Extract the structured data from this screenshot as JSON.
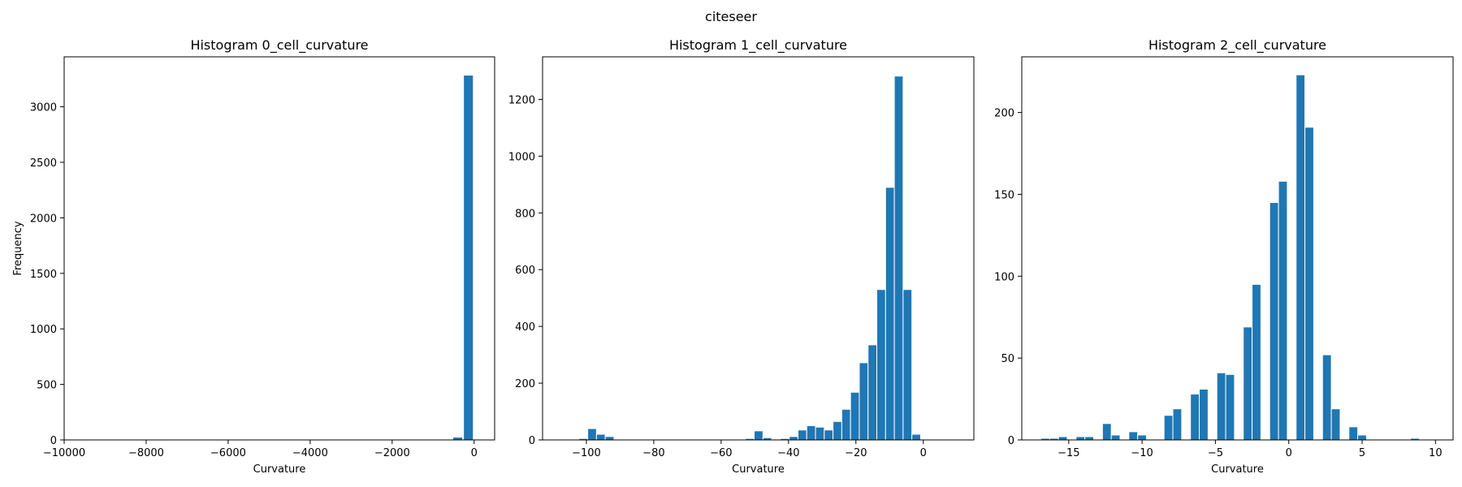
{
  "figure": {
    "suptitle": "citeseer"
  },
  "chart_data": [
    {
      "type": "bar",
      "title": "Histogram 0_cell_curvature",
      "xlabel": "Curvature",
      "ylabel": "Frequency",
      "xlim": [
        -10000,
        500
      ],
      "ylim": [
        0,
        3450
      ],
      "xticks": [
        -10000,
        -8000,
        -6000,
        -4000,
        -2000,
        0
      ],
      "xtick_labels": [
        "−10000",
        "−8000",
        "−6000",
        "−4000",
        "−2000",
        "0"
      ],
      "yticks": [
        0,
        500,
        1000,
        1500,
        2000,
        2500,
        3000
      ],
      "ytick_labels": [
        "0",
        "500",
        "1000",
        "1500",
        "2000",
        "2500",
        "3000"
      ],
      "bar_color": "#1f77b4",
      "bars": [
        {
          "x0": -9800,
          "x1": -9560,
          "value": 1
        },
        {
          "x0": -520,
          "x1": -280,
          "value": 25
        },
        {
          "x0": -260,
          "x1": -20,
          "value": 3285
        }
      ]
    },
    {
      "type": "bar",
      "title": "Histogram 1_cell_curvature",
      "xlabel": "Curvature",
      "ylabel": "",
      "xlim": [
        -113,
        15
      ],
      "ylim": [
        0,
        1350
      ],
      "xticks": [
        -100,
        -80,
        -60,
        -40,
        -20,
        0
      ],
      "xtick_labels": [
        "−100",
        "−80",
        "−60",
        "−40",
        "−20",
        "0"
      ],
      "yticks": [
        0,
        200,
        400,
        600,
        800,
        1000,
        1200
      ],
      "ytick_labels": [
        "0",
        "200",
        "400",
        "600",
        "800",
        "1000",
        "1200"
      ],
      "bar_color": "#1f77b4",
      "bars": [
        {
          "x0": -104.8,
          "x1": -102.2,
          "value": 2
        },
        {
          "x0": -102.2,
          "x1": -99.6,
          "value": 5
        },
        {
          "x0": -99.6,
          "x1": -97.0,
          "value": 40
        },
        {
          "x0": -97.0,
          "x1": -94.4,
          "value": 20
        },
        {
          "x0": -94.4,
          "x1": -91.8,
          "value": 12
        },
        {
          "x0": -52.8,
          "x1": -50.2,
          "value": 5
        },
        {
          "x0": -50.2,
          "x1": -47.6,
          "value": 32
        },
        {
          "x0": -47.6,
          "x1": -45.0,
          "value": 8
        },
        {
          "x0": -45.0,
          "x1": -42.4,
          "value": 3
        },
        {
          "x0": -42.4,
          "x1": -39.8,
          "value": 5
        },
        {
          "x0": -39.8,
          "x1": -37.2,
          "value": 12
        },
        {
          "x0": -37.2,
          "x1": -34.6,
          "value": 35
        },
        {
          "x0": -34.6,
          "x1": -32.0,
          "value": 50
        },
        {
          "x0": -32.0,
          "x1": -29.4,
          "value": 45
        },
        {
          "x0": -29.4,
          "x1": -26.8,
          "value": 35
        },
        {
          "x0": -26.8,
          "x1": -24.2,
          "value": 65
        },
        {
          "x0": -24.2,
          "x1": -21.6,
          "value": 108
        },
        {
          "x0": -21.6,
          "x1": -19.0,
          "value": 168
        },
        {
          "x0": -19.0,
          "x1": -16.4,
          "value": 272
        },
        {
          "x0": -16.4,
          "x1": -13.8,
          "value": 335
        },
        {
          "x0": -13.8,
          "x1": -11.2,
          "value": 530
        },
        {
          "x0": -11.2,
          "x1": -8.6,
          "value": 890
        },
        {
          "x0": -8.6,
          "x1": -6.0,
          "value": 1282
        },
        {
          "x0": -6.0,
          "x1": -3.4,
          "value": 530
        },
        {
          "x0": -3.4,
          "x1": -0.8,
          "value": 20
        }
      ]
    },
    {
      "type": "bar",
      "title": "Histogram 2_cell_curvature",
      "xlabel": "Curvature",
      "ylabel": "",
      "xlim": [
        -18.2,
        11.2
      ],
      "ylim": [
        0,
        234
      ],
      "xticks": [
        -15,
        -10,
        -5,
        0,
        5,
        10
      ],
      "xtick_labels": [
        "−15",
        "−10",
        "−5",
        "0",
        "5",
        "10"
      ],
      "yticks": [
        0,
        50,
        100,
        150,
        200
      ],
      "ytick_labels": [
        "0",
        "50",
        "100",
        "150",
        "200"
      ],
      "bar_color": "#1f77b4",
      "bars": [
        {
          "x0": -16.9,
          "x1": -16.3,
          "value": 1
        },
        {
          "x0": -16.3,
          "x1": -15.7,
          "value": 1
        },
        {
          "x0": -15.7,
          "x1": -15.1,
          "value": 2
        },
        {
          "x0": -14.5,
          "x1": -13.9,
          "value": 2
        },
        {
          "x0": -13.9,
          "x1": -13.3,
          "value": 2
        },
        {
          "x0": -12.7,
          "x1": -12.1,
          "value": 10
        },
        {
          "x0": -12.1,
          "x1": -11.5,
          "value": 3
        },
        {
          "x0": -10.9,
          "x1": -10.3,
          "value": 5
        },
        {
          "x0": -10.3,
          "x1": -9.7,
          "value": 3
        },
        {
          "x0": -9.1,
          "x1": -8.5,
          "value": 0
        },
        {
          "x0": -8.5,
          "x1": -7.9,
          "value": 15
        },
        {
          "x0": -7.9,
          "x1": -7.3,
          "value": 19
        },
        {
          "x0": -6.7,
          "x1": -6.1,
          "value": 28
        },
        {
          "x0": -6.1,
          "x1": -5.5,
          "value": 31
        },
        {
          "x0": -4.9,
          "x1": -4.3,
          "value": 41
        },
        {
          "x0": -4.3,
          "x1": -3.7,
          "value": 40
        },
        {
          "x0": -3.1,
          "x1": -2.5,
          "value": 69
        },
        {
          "x0": -2.5,
          "x1": -1.9,
          "value": 95
        },
        {
          "x0": -1.3,
          "x1": -0.7,
          "value": 145
        },
        {
          "x0": -0.7,
          "x1": -0.1,
          "value": 158
        },
        {
          "x0": 0.5,
          "x1": 1.1,
          "value": 223
        },
        {
          "x0": 1.1,
          "x1": 1.7,
          "value": 191
        },
        {
          "x0": 2.3,
          "x1": 2.9,
          "value": 52
        },
        {
          "x0": 2.9,
          "x1": 3.5,
          "value": 19
        },
        {
          "x0": 4.1,
          "x1": 4.7,
          "value": 8
        },
        {
          "x0": 4.7,
          "x1": 5.3,
          "value": 3
        },
        {
          "x0": 8.3,
          "x1": 8.9,
          "value": 1
        }
      ]
    }
  ]
}
